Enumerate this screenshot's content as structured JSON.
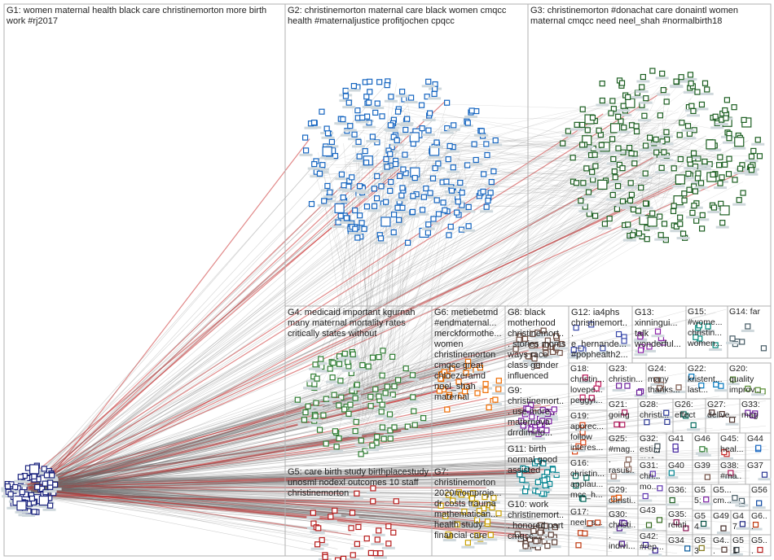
{
  "groups": [
    {
      "label": "G1: women maternal health black care christinemorton more birth work #rj2017"
    },
    {
      "label": "G2: christinemorton maternal care black women cmqcc health #maternaljustice profitjochen cpqcc"
    },
    {
      "label": "G3: christinemorton #donachat care donaintl women maternal cmqcc need neel_shah #normalbirth18"
    },
    {
      "label": "G4: medicaid important kgurnah many maternal mortality rates critically states without"
    },
    {
      "label": "G5: care birth study birthplacestudy unosml nodexl outcomes 10 staff christinemorton"
    },
    {
      "label": "G6: metiebetmd #endmaternal... merckformothe... women christinemorton cmqcc great chloezeramd neel_shah maternal"
    },
    {
      "label": "G7: christinemorton 2020momproje... dr costs trauma mathematican... health study financial care"
    },
    {
      "label": "G8: black motherhood christinemort... stories moms ways race class gender influenced"
    },
    {
      "label": "G9: christinemort... use more... maternova drrdimino..."
    },
    {
      "label": "G11: birth normal good assisted"
    },
    {
      "label": "G10: work christinemort... honored part cmqcc..."
    },
    {
      "label": "G12: ia4phs christinemort... e_hernande... #pophealth2..."
    },
    {
      "label": "G13: xinningui... talk wonderful..."
    },
    {
      "label": "G15: #wome... christin... women..."
    },
    {
      "label": "G14: far"
    },
    {
      "label": "G18: christin... lovepe... peggyi..."
    },
    {
      "label": "G23: christin..."
    },
    {
      "label": "G24: many thanks..."
    },
    {
      "label": "G22: kristent... last..."
    },
    {
      "label": "G20: quality improv..."
    },
    {
      "label": "G21: going"
    },
    {
      "label": "G28: christi..."
    },
    {
      "label": "G26: effect"
    },
    {
      "label": "G27: delive..."
    },
    {
      "label": "G33: mag"
    },
    {
      "label": "G19: apprec... follow interes..."
    },
    {
      "label": "G32: esti... mat..."
    },
    {
      "label": "G41"
    },
    {
      "label": "G46"
    },
    {
      "label": "G45: heal..."
    },
    {
      "label": "G44"
    },
    {
      "label": "G25: #mag... rasus..."
    },
    {
      "label": "G31: chri... mo..."
    },
    {
      "label": "G40"
    },
    {
      "label": "G39"
    },
    {
      "label": "G38: #ma..."
    },
    {
      "label": "G37"
    },
    {
      "label": "G16: christin... applau... mcc_h..."
    },
    {
      "label": "G29: christi..."
    },
    {
      "label": "G36:"
    },
    {
      "label": "G55: pr..."
    },
    {
      "label": "G5... cm..."
    },
    {
      "label": "G56"
    },
    {
      "label": "G17: neel_s..."
    },
    {
      "label": "G30: christi... indivi..."
    },
    {
      "label": "G43"
    },
    {
      "label": "G35: relati..."
    },
    {
      "label": "G54"
    },
    {
      "label": "G49"
    },
    {
      "label": "G47"
    },
    {
      "label": "G6... usa"
    },
    {
      "label": "G42: #rep..."
    },
    {
      "label": "G34"
    },
    {
      "label": "G53"
    },
    {
      "label": "G4... inc..."
    },
    {
      "label": "G51"
    },
    {
      "label": "G5... ca..."
    }
  ]
}
